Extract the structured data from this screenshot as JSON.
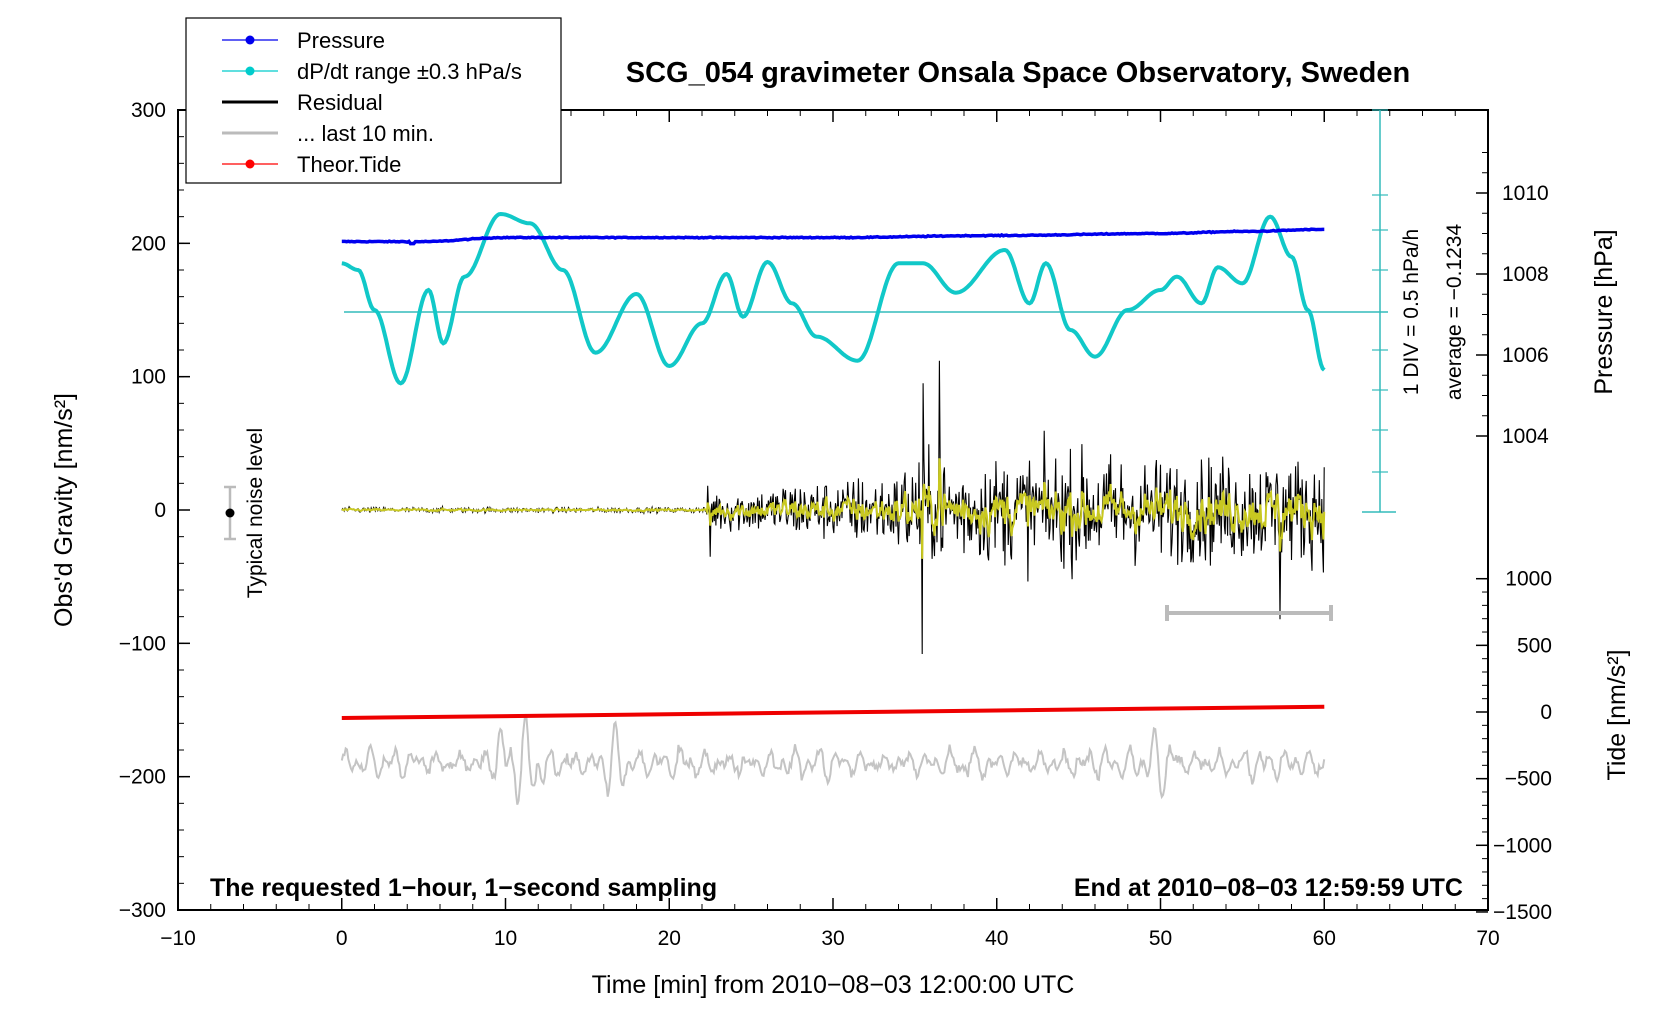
{
  "chart_data": {
    "type": "line",
    "title": "SCG_054 gravimeter Onsala Space Observatory, Sweden",
    "xlabel": "Time [min] from 2010−08−03 12:00:00 UTC",
    "ylabel_left": "Obs'd Gravity [nm/s²]",
    "ylabel_right_pressure": "Pressure [hPa]",
    "ylabel_right_tide": "Tide [nm/s²]",
    "xlim": [
      -10,
      70
    ],
    "ylim_left": [
      -300,
      300
    ],
    "x_ticks": [
      "−10",
      "0",
      "10",
      "20",
      "30",
      "40",
      "50",
      "60",
      "70"
    ],
    "y_ticks_left": [
      "300",
      "200",
      "100",
      "0",
      "−100",
      "−200",
      "−300"
    ],
    "pressure_ticks": [
      "1010",
      "1008",
      "1006",
      "1004"
    ],
    "tide_ticks": [
      "1000",
      "500",
      "0",
      "−500",
      "−1000",
      "−1500"
    ],
    "legend": [
      {
        "label": "Pressure",
        "color": "#0000ee"
      },
      {
        "label": "dP/dt range ±0.3 hPa/s",
        "color": "#00cccc"
      },
      {
        "label": "Residual",
        "color": "#000000"
      },
      {
        "label": "... last 10 min.",
        "color": "#bbbbbb"
      },
      {
        "label": "Theor.Tide",
        "color": "#ff0000"
      }
    ],
    "annotations": {
      "bottom_left": "The requested 1−hour, 1−second sampling",
      "bottom_right": "End at 2010−08−03 12:59:59 UTC",
      "noise_label": "Typical noise level",
      "div_label": "1 DIV = 0.5 hPa/h",
      "average_label": "average = −0.1234"
    },
    "series": [
      {
        "name": "Pressure",
        "unit": "hPa",
        "x": [
          0,
          5,
          10,
          20,
          30,
          40,
          50,
          55,
          60
        ],
        "values": [
          1008.8,
          1008.8,
          1008.9,
          1008.9,
          1008.9,
          1008.95,
          1009.0,
          1009.05,
          1009.1
        ]
      },
      {
        "name": "dP/dt",
        "unit": "nm/s² (left axis)",
        "x": [
          0,
          1,
          2,
          3.6,
          5.3,
          6.2,
          7.5,
          9.7,
          11.5,
          13.5,
          15.5,
          18,
          20,
          22,
          23.5,
          24.5,
          26,
          27.5,
          29,
          31.5,
          34,
          35.5,
          37.5,
          40.5,
          42,
          43,
          44.5,
          46,
          48,
          50,
          51,
          52.5,
          53.5,
          55,
          56.7,
          58,
          59,
          60
        ],
        "values": [
          185,
          180,
          150,
          95,
          165,
          125,
          175,
          222,
          215,
          180,
          118,
          162,
          108,
          140,
          177,
          145,
          186,
          155,
          130,
          112,
          185,
          185,
          163,
          195,
          155,
          185,
          135,
          115,
          150,
          165,
          175,
          155,
          182,
          170,
          220,
          190,
          150,
          105
        ]
      },
      {
        "name": "Residual",
        "unit": "nm/s²",
        "x": [
          0,
          22,
          35.5,
          36.5,
          60
        ],
        "values": [
          0,
          0,
          -110,
          112,
          -40
        ]
      },
      {
        "name": "Theor.Tide",
        "unit": "nm/s² (tide axis)",
        "x": [
          0,
          60
        ],
        "values": [
          -45,
          40
        ]
      },
      {
        "name": "... last 10 min.",
        "unit": "nm/s² (left axis)",
        "x": [
          0,
          10,
          11.5,
          16.5,
          50,
          60
        ],
        "values": [
          -188,
          -222,
          -140,
          -222,
          -160,
          -182
        ]
      }
    ]
  }
}
